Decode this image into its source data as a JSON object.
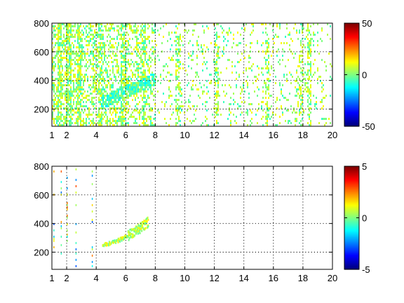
{
  "chart_data": [
    {
      "type": "heatmap",
      "title": "",
      "xlabel": "",
      "ylabel": "",
      "xlim": [
        1,
        20
      ],
      "ylim": [
        80,
        800
      ],
      "x_ticks": [
        "1",
        "2",
        "4",
        "6",
        "8",
        "10",
        "12",
        "14",
        "16",
        "18",
        "20"
      ],
      "y_ticks": [
        "200",
        "400",
        "600",
        "800"
      ],
      "grid": true,
      "colormap": "jet",
      "colorbar": {
        "clim": [
          -50,
          50
        ],
        "ticks": [
          "50",
          "0",
          "-50"
        ]
      },
      "description_values": {
        "background_value": 0,
        "dense_columns_x": [
          1.5,
          2.1,
          2.8,
          4.2,
          5.8,
          7.2,
          9.5,
          12.1,
          15.5,
          17.8,
          18.4
        ],
        "feature": {
          "x_range": [
            4.3,
            8.0
          ],
          "y_range": [
            250,
            420
          ],
          "peak_value": -10
        }
      }
    },
    {
      "type": "heatmap",
      "title": "",
      "xlabel": "",
      "ylabel": "",
      "xlim": [
        1,
        20
      ],
      "ylim": [
        80,
        800
      ],
      "x_ticks": [
        "1",
        "2",
        "4",
        "6",
        "8",
        "10",
        "12",
        "14",
        "16",
        "18",
        "20"
      ],
      "y_ticks": [
        "200",
        "400",
        "600",
        "800"
      ],
      "grid": true,
      "colormap": "jet",
      "colorbar": {
        "clim": [
          -5,
          5
        ],
        "ticks": [
          "5",
          "0",
          "-5"
        ]
      },
      "description_values": {
        "background_value": "none",
        "sparse_columns_x": [
          1.1,
          1.6,
          2.0,
          2.6,
          3.7
        ],
        "feature": {
          "x_range": [
            4.4,
            7.5
          ],
          "y_range": [
            260,
            420
          ],
          "peak_value": -1
        }
      }
    }
  ],
  "colors": {
    "background": "#ffffff",
    "axis": "#000000"
  }
}
